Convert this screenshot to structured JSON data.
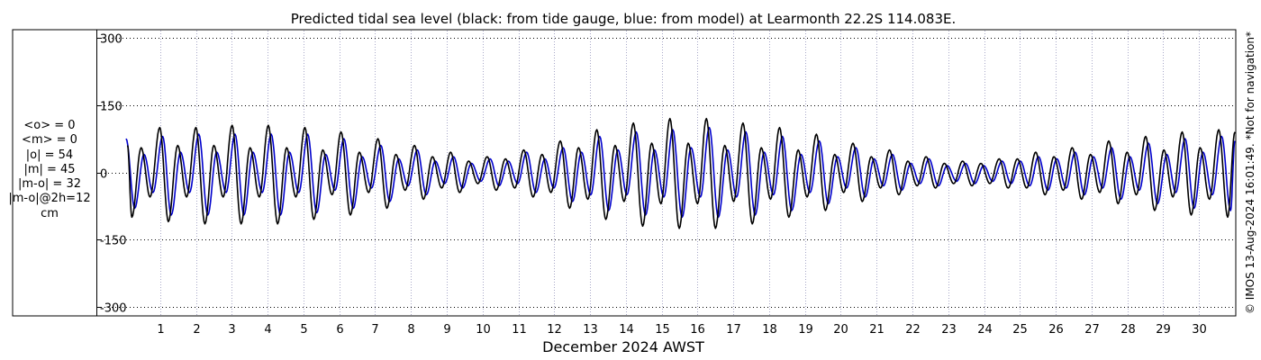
{
  "chart_data": {
    "type": "line",
    "title": "Predicted tidal sea level (black: from tide gauge, blue: from model) at Learmonth 22.2S 114.083E.",
    "xlabel": "December 2024 AWST",
    "ylabel": "",
    "xlim": [
      0.0,
      31.0
    ],
    "ylim": [
      -320,
      320
    ],
    "yticks": [
      300,
      150,
      0,
      -150,
      -300
    ],
    "xticks": [
      1,
      2,
      3,
      4,
      5,
      6,
      7,
      8,
      9,
      10,
      11,
      12,
      13,
      14,
      15,
      16,
      17,
      18,
      19,
      20,
      21,
      22,
      23,
      24,
      25,
      26,
      27,
      28,
      29,
      30
    ],
    "grid": true,
    "series": [
      {
        "name": "from tide gauge",
        "color": "#000000",
        "values": [
          [
            0.09,
            60
          ],
          [
            0.21,
            -100
          ],
          [
            0.47,
            55
          ],
          [
            0.72,
            -55
          ],
          [
            0.99,
            100
          ],
          [
            1.23,
            -110
          ],
          [
            1.49,
            60
          ],
          [
            1.74,
            -55
          ],
          [
            2.0,
            100
          ],
          [
            2.25,
            -115
          ],
          [
            2.5,
            60
          ],
          [
            2.76,
            -55
          ],
          [
            3.01,
            105
          ],
          [
            3.26,
            -115
          ],
          [
            3.51,
            55
          ],
          [
            3.77,
            -55
          ],
          [
            4.02,
            105
          ],
          [
            4.28,
            -115
          ],
          [
            4.53,
            55
          ],
          [
            4.79,
            -55
          ],
          [
            5.04,
            100
          ],
          [
            5.29,
            -105
          ],
          [
            5.54,
            50
          ],
          [
            5.8,
            -50
          ],
          [
            6.05,
            90
          ],
          [
            6.31,
            -95
          ],
          [
            6.56,
            45
          ],
          [
            6.82,
            -45
          ],
          [
            7.08,
            75
          ],
          [
            7.33,
            -80
          ],
          [
            7.58,
            40
          ],
          [
            7.84,
            -40
          ],
          [
            8.1,
            60
          ],
          [
            8.35,
            -60
          ],
          [
            8.6,
            35
          ],
          [
            8.86,
            -35
          ],
          [
            9.11,
            45
          ],
          [
            9.36,
            -45
          ],
          [
            9.61,
            25
          ],
          [
            9.87,
            -25
          ],
          [
            10.13,
            35
          ],
          [
            10.38,
            -40
          ],
          [
            10.64,
            30
          ],
          [
            10.9,
            -35
          ],
          [
            11.15,
            50
          ],
          [
            11.41,
            -55
          ],
          [
            11.66,
            40
          ],
          [
            11.91,
            -45
          ],
          [
            12.17,
            70
          ],
          [
            12.43,
            -80
          ],
          [
            12.68,
            55
          ],
          [
            12.94,
            -60
          ],
          [
            13.19,
            95
          ],
          [
            13.44,
            -105
          ],
          [
            13.7,
            60
          ],
          [
            13.95,
            -65
          ],
          [
            14.21,
            110
          ],
          [
            14.47,
            -120
          ],
          [
            14.72,
            65
          ],
          [
            14.98,
            -70
          ],
          [
            15.23,
            120
          ],
          [
            15.49,
            -125
          ],
          [
            15.74,
            65
          ],
          [
            16.0,
            -70
          ],
          [
            16.25,
            120
          ],
          [
            16.5,
            -125
          ],
          [
            16.76,
            60
          ],
          [
            17.01,
            -65
          ],
          [
            17.27,
            110
          ],
          [
            17.53,
            -115
          ],
          [
            17.78,
            55
          ],
          [
            18.04,
            -60
          ],
          [
            18.29,
            100
          ],
          [
            18.55,
            -100
          ],
          [
            18.81,
            50
          ],
          [
            19.06,
            -55
          ],
          [
            19.32,
            85
          ],
          [
            19.57,
            -85
          ],
          [
            19.83,
            40
          ],
          [
            20.08,
            -45
          ],
          [
            20.34,
            65
          ],
          [
            20.6,
            -65
          ],
          [
            20.85,
            35
          ],
          [
            21.11,
            -35
          ],
          [
            21.36,
            50
          ],
          [
            21.62,
            -50
          ],
          [
            21.87,
            25
          ],
          [
            22.13,
            -30
          ],
          [
            22.38,
            35
          ],
          [
            22.64,
            -35
          ],
          [
            22.89,
            20
          ],
          [
            23.15,
            -25
          ],
          [
            23.4,
            25
          ],
          [
            23.66,
            -30
          ],
          [
            23.91,
            20
          ],
          [
            24.16,
            -25
          ],
          [
            24.42,
            30
          ],
          [
            24.67,
            -35
          ],
          [
            24.93,
            30
          ],
          [
            25.19,
            -35
          ],
          [
            25.44,
            45
          ],
          [
            25.7,
            -50
          ],
          [
            25.95,
            35
          ],
          [
            26.21,
            -40
          ],
          [
            26.46,
            55
          ],
          [
            26.72,
            -60
          ],
          [
            26.97,
            40
          ],
          [
            27.23,
            -45
          ],
          [
            27.48,
            70
          ],
          [
            27.74,
            -70
          ],
          [
            27.99,
            45
          ],
          [
            28.25,
            -50
          ],
          [
            28.51,
            80
          ],
          [
            28.76,
            -85
          ],
          [
            29.02,
            50
          ],
          [
            29.27,
            -55
          ],
          [
            29.53,
            90
          ],
          [
            29.78,
            -95
          ],
          [
            30.03,
            55
          ],
          [
            30.29,
            -60
          ],
          [
            30.55,
            95
          ],
          [
            30.8,
            -100
          ],
          [
            31.0,
            90
          ]
        ]
      },
      {
        "name": "from model",
        "color": "#0000cc",
        "values": [
          [
            0.05,
            75
          ],
          [
            0.29,
            -80
          ],
          [
            0.55,
            40
          ],
          [
            0.8,
            -45
          ],
          [
            1.07,
            80
          ],
          [
            1.31,
            -95
          ],
          [
            1.57,
            45
          ],
          [
            1.82,
            -45
          ],
          [
            2.08,
            85
          ],
          [
            2.33,
            -95
          ],
          [
            2.58,
            45
          ],
          [
            2.84,
            -45
          ],
          [
            3.09,
            85
          ],
          [
            3.34,
            -95
          ],
          [
            3.59,
            45
          ],
          [
            3.85,
            -45
          ],
          [
            4.1,
            85
          ],
          [
            4.36,
            -95
          ],
          [
            4.61,
            45
          ],
          [
            4.87,
            -45
          ],
          [
            5.12,
            85
          ],
          [
            5.37,
            -90
          ],
          [
            5.62,
            40
          ],
          [
            5.88,
            -40
          ],
          [
            6.13,
            75
          ],
          [
            6.39,
            -80
          ],
          [
            6.64,
            35
          ],
          [
            6.9,
            -35
          ],
          [
            7.16,
            60
          ],
          [
            7.41,
            -65
          ],
          [
            7.66,
            30
          ],
          [
            7.92,
            -30
          ],
          [
            8.18,
            50
          ],
          [
            8.43,
            -50
          ],
          [
            8.68,
            25
          ],
          [
            8.94,
            -25
          ],
          [
            9.19,
            35
          ],
          [
            9.44,
            -35
          ],
          [
            9.69,
            20
          ],
          [
            9.95,
            -20
          ],
          [
            10.21,
            30
          ],
          [
            10.46,
            -30
          ],
          [
            10.72,
            25
          ],
          [
            10.98,
            -25
          ],
          [
            11.23,
            45
          ],
          [
            11.49,
            -45
          ],
          [
            11.74,
            30
          ],
          [
            11.99,
            -35
          ],
          [
            12.25,
            55
          ],
          [
            12.51,
            -65
          ],
          [
            12.76,
            45
          ],
          [
            13.02,
            -50
          ],
          [
            13.27,
            80
          ],
          [
            13.52,
            -85
          ],
          [
            13.78,
            50
          ],
          [
            14.03,
            -50
          ],
          [
            14.29,
            90
          ],
          [
            14.55,
            -95
          ],
          [
            14.8,
            50
          ],
          [
            15.06,
            -55
          ],
          [
            15.31,
            95
          ],
          [
            15.57,
            -100
          ],
          [
            15.82,
            55
          ],
          [
            16.08,
            -55
          ],
          [
            16.33,
            100
          ],
          [
            16.58,
            -100
          ],
          [
            16.84,
            50
          ],
          [
            17.09,
            -55
          ],
          [
            17.35,
            90
          ],
          [
            17.61,
            -95
          ],
          [
            17.86,
            45
          ],
          [
            18.12,
            -50
          ],
          [
            18.37,
            80
          ],
          [
            18.63,
            -85
          ],
          [
            18.89,
            40
          ],
          [
            19.14,
            -45
          ],
          [
            19.4,
            70
          ],
          [
            19.65,
            -70
          ],
          [
            19.91,
            35
          ],
          [
            20.16,
            -35
          ],
          [
            20.42,
            55
          ],
          [
            20.68,
            -55
          ],
          [
            20.93,
            30
          ],
          [
            21.19,
            -30
          ],
          [
            21.44,
            40
          ],
          [
            21.7,
            -40
          ],
          [
            21.95,
            20
          ],
          [
            22.21,
            -25
          ],
          [
            22.46,
            30
          ],
          [
            22.72,
            -30
          ],
          [
            22.97,
            15
          ],
          [
            23.23,
            -20
          ],
          [
            23.48,
            20
          ],
          [
            23.74,
            -25
          ],
          [
            23.99,
            15
          ],
          [
            24.24,
            -20
          ],
          [
            24.5,
            25
          ],
          [
            24.75,
            -25
          ],
          [
            25.01,
            25
          ],
          [
            25.27,
            -30
          ],
          [
            25.52,
            35
          ],
          [
            25.78,
            -40
          ],
          [
            26.03,
            30
          ],
          [
            26.29,
            -35
          ],
          [
            26.54,
            45
          ],
          [
            26.8,
            -50
          ],
          [
            27.05,
            35
          ],
          [
            27.31,
            -35
          ],
          [
            27.56,
            55
          ],
          [
            27.82,
            -60
          ],
          [
            28.07,
            35
          ],
          [
            28.33,
            -40
          ],
          [
            28.59,
            65
          ],
          [
            28.84,
            -70
          ],
          [
            29.1,
            40
          ],
          [
            29.35,
            -45
          ],
          [
            29.61,
            75
          ],
          [
            29.86,
            -80
          ],
          [
            30.11,
            45
          ],
          [
            30.37,
            -50
          ],
          [
            30.63,
            80
          ],
          [
            30.88,
            -85
          ],
          [
            31.0,
            70
          ]
        ]
      }
    ]
  },
  "stats": [
    "<o> = 0",
    "<m> = 0",
    "|o| = 54",
    "|m| = 45",
    "|m-o| = 32",
    "|m-o|@2h=12",
    "cm"
  ],
  "side_note": "© IMOS 13-Aug-2024 16:01:49. *Not for navigation*"
}
